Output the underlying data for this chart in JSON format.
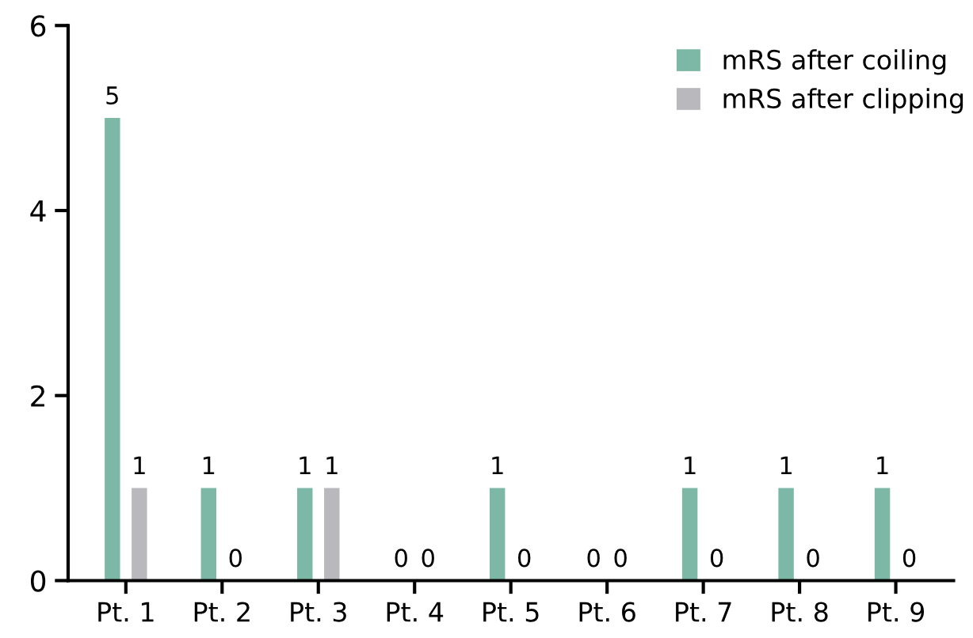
{
  "chart_data": {
    "type": "bar",
    "categories": [
      "Pt. 1",
      "Pt. 2",
      "Pt. 3",
      "Pt. 4",
      "Pt. 5",
      "Pt. 6",
      "Pt. 7",
      "Pt. 8",
      "Pt. 9"
    ],
    "series": [
      {
        "name": "mRS after coiling",
        "color": "#7db8a6",
        "values": [
          5,
          1,
          1,
          0,
          1,
          0,
          1,
          1,
          1
        ]
      },
      {
        "name": "mRS after clipping",
        "color": "#b9b9bd",
        "values": [
          1,
          0,
          1,
          0,
          0,
          0,
          0,
          0,
          0
        ]
      }
    ],
    "ylim": [
      0,
      6
    ],
    "yticks": [
      0,
      2,
      4,
      6
    ],
    "data_labels": true,
    "legend": "top right",
    "grid": false
  }
}
